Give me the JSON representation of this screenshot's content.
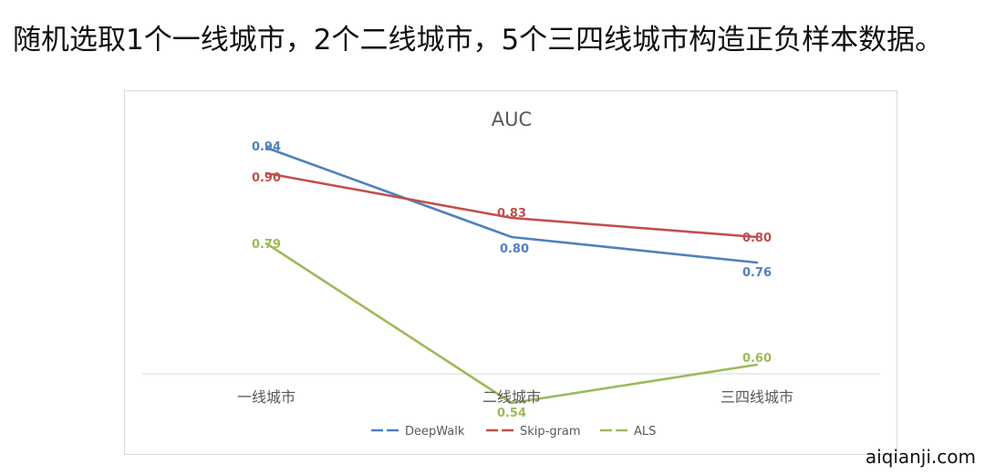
{
  "heading": "随机选取1个一线城市，2个二线城市，5个三四线城市构造正负样本数据。",
  "watermark": "aiqianji.com",
  "chart_data": {
    "type": "line",
    "title": "AUC",
    "categories": [
      "一线城市",
      "二线城市",
      "三四线城市"
    ],
    "series": [
      {
        "name": "DeepWalk",
        "values": [
          0.94,
          0.8,
          0.76
        ],
        "labels": [
          "0.94",
          "0.80",
          "0.76"
        ],
        "color": "#4f81bd"
      },
      {
        "name": "Skip-gram",
        "values": [
          0.9,
          0.83,
          0.8
        ],
        "labels": [
          "0.90",
          "0.83",
          "0.80"
        ],
        "color": "#c0504d"
      },
      {
        "name": "ALS",
        "values": [
          0.79,
          0.54,
          0.6
        ],
        "labels": [
          "0.79",
          "0.54",
          "0.60"
        ],
        "color": "#9bbb59"
      }
    ],
    "ylim": [
      0.5,
      1.0
    ],
    "grid": false,
    "legend": "bottom"
  }
}
